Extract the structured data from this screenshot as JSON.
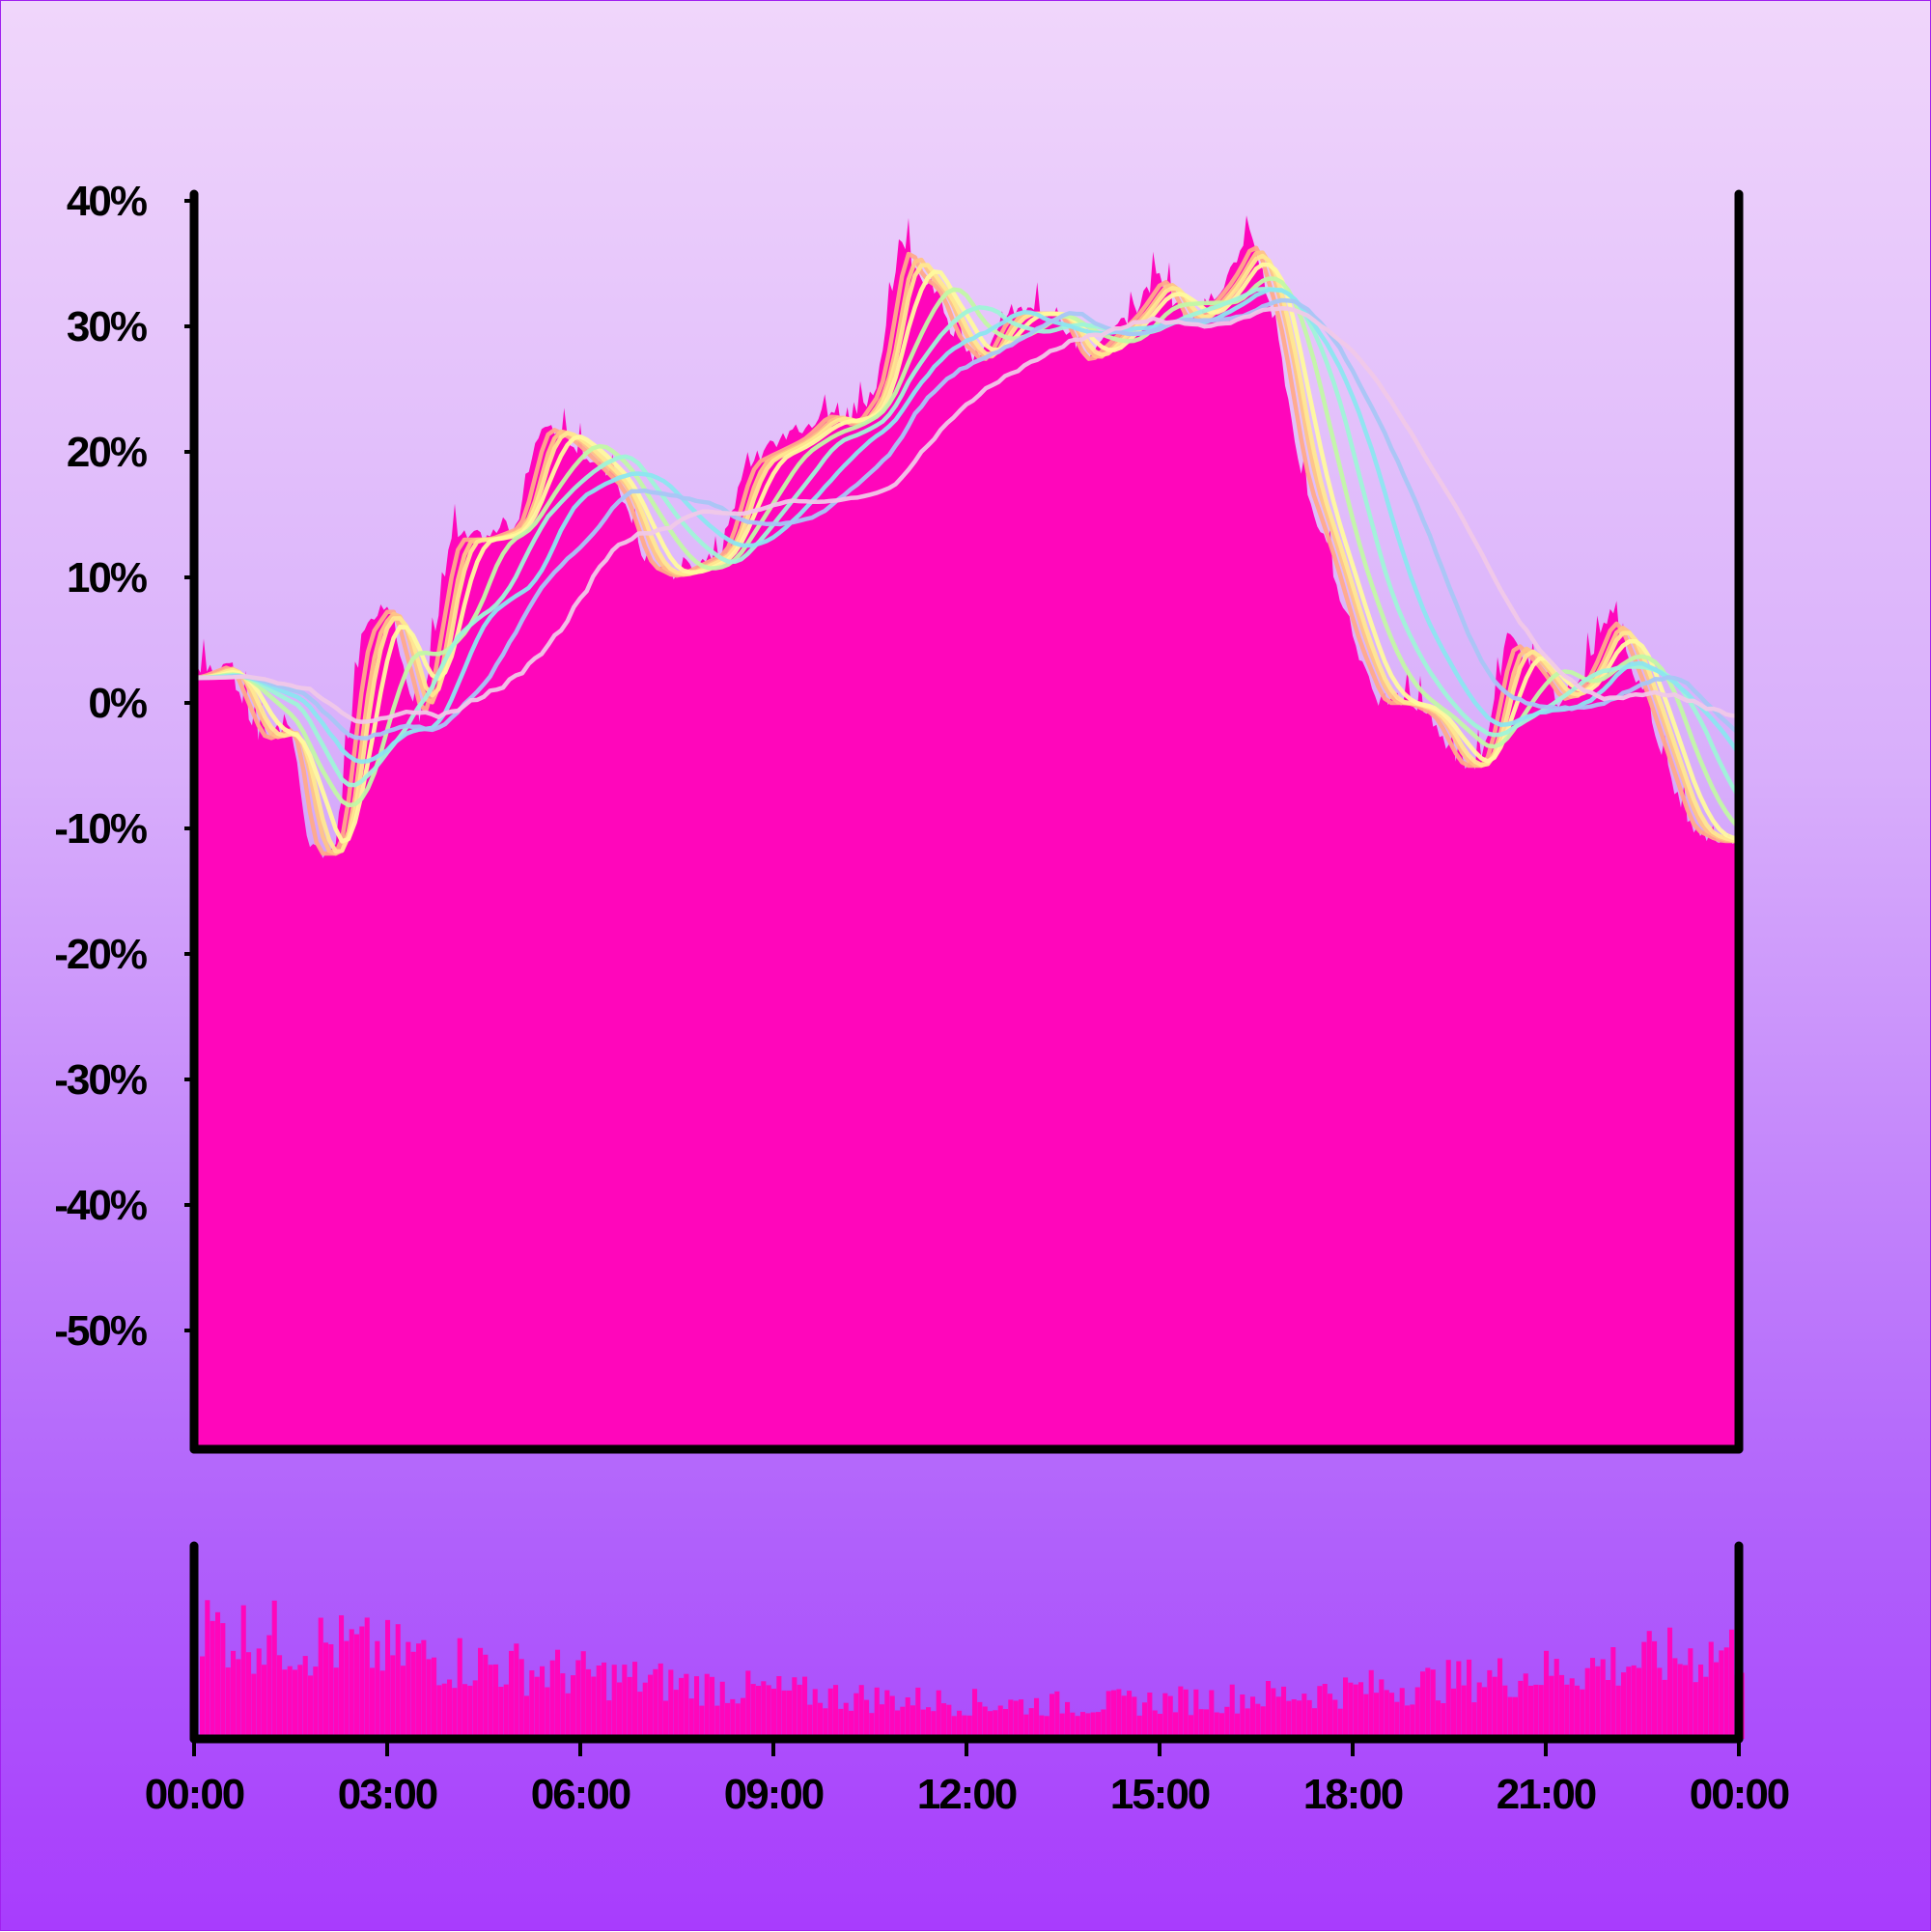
{
  "chart_data": {
    "type": "area",
    "title": "",
    "xlabel": "",
    "ylabel": "",
    "ylim": [
      -60,
      40
    ],
    "grid": false,
    "legend": "none",
    "y_ticks": [
      {
        "value": 40,
        "label": "40%"
      },
      {
        "value": 30,
        "label": "30%"
      },
      {
        "value": 20,
        "label": "20%"
      },
      {
        "value": 10,
        "label": "10%"
      },
      {
        "value": 0,
        "label": "0%"
      },
      {
        "value": -10,
        "label": "-10%"
      },
      {
        "value": -20,
        "label": "-20%"
      },
      {
        "value": -30,
        "label": "-30%"
      },
      {
        "value": -40,
        "label": "-40%"
      },
      {
        "value": -50,
        "label": "-50%"
      }
    ],
    "x_ticks": [
      {
        "value": 0,
        "label": "00:00"
      },
      {
        "value": 3,
        "label": "03:00"
      },
      {
        "value": 6,
        "label": "06:00"
      },
      {
        "value": 9,
        "label": "09:00"
      },
      {
        "value": 12,
        "label": "12:00"
      },
      {
        "value": 15,
        "label": "15:00"
      },
      {
        "value": 18,
        "label": "18:00"
      },
      {
        "value": 21,
        "label": "21:00"
      },
      {
        "value": 24,
        "label": "00:00"
      }
    ],
    "price": {
      "x": [
        0,
        0.5,
        1.0,
        1.5,
        1.8,
        2.2,
        2.6,
        3.0,
        3.5,
        4.0,
        4.5,
        5.0,
        5.4,
        5.8,
        6.2,
        6.6,
        7.0,
        7.4,
        7.8,
        8.2,
        8.6,
        9.0,
        9.4,
        9.8,
        10.2,
        10.6,
        10.8,
        11.0,
        11.2,
        11.5,
        11.8,
        12.2,
        12.6,
        13.0,
        13.4,
        13.8,
        14.2,
        14.6,
        15.0,
        15.4,
        15.8,
        16.1,
        16.4,
        16.8,
        17.2,
        17.6,
        18.0,
        18.4,
        18.8,
        19.2,
        19.6,
        20.0,
        20.4,
        20.8,
        21.2,
        21.6,
        22.0,
        22.4,
        22.8,
        23.2,
        23.6,
        24.0
      ],
      "y": [
        2,
        3,
        -3,
        -2,
        -12,
        -12,
        5,
        8,
        -2,
        13,
        13,
        14,
        22,
        21,
        19,
        17,
        11,
        10,
        11,
        12,
        19,
        20,
        21,
        23,
        22,
        25,
        31,
        37,
        34,
        33,
        29,
        27,
        31,
        31,
        31,
        27,
        29,
        31,
        34,
        30,
        32,
        34,
        37,
        30,
        18,
        12,
        5,
        0,
        0,
        -1,
        -5,
        -5,
        5,
        3,
        0,
        2,
        7,
        2,
        -4,
        -10,
        -11,
        -11
      ],
      "color": "#ff06bb"
    },
    "moving_averages": [
      {
        "color": "#ffaa8a",
        "lag": 0.1,
        "window": 0.2
      },
      {
        "color": "#ffc486",
        "lag": 0.2,
        "window": 0.3
      },
      {
        "color": "#ffe890",
        "lag": 0.25,
        "window": 0.4
      },
      {
        "color": "#fffa9e",
        "lag": 0.35,
        "window": 0.6
      },
      {
        "color": "#c2f8a6",
        "lag": 0.55,
        "window": 1.0
      },
      {
        "color": "#9ff4d8",
        "lag": 0.8,
        "window": 1.4
      },
      {
        "color": "#8ce6f0",
        "lag": 1.1,
        "window": 1.9
      },
      {
        "color": "#a8c6f6",
        "lag": 1.5,
        "window": 2.6
      },
      {
        "color": "#f0c8e8",
        "lag": 2.1,
        "window": 3.6
      }
    ],
    "volume": {
      "y_max": 100,
      "color": "#ff06bb"
    }
  }
}
